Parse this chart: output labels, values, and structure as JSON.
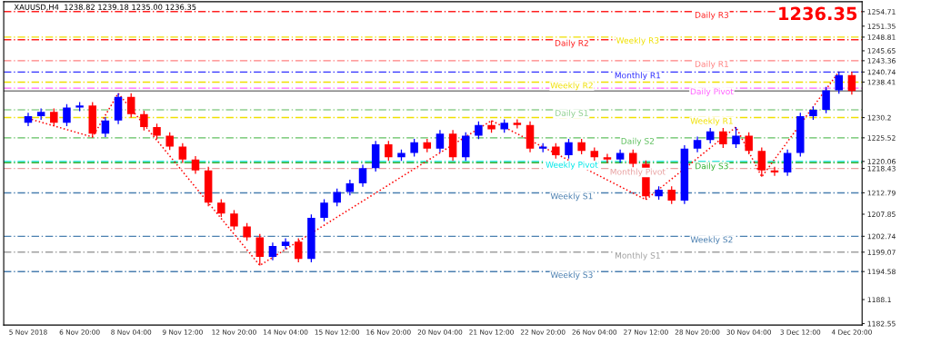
{
  "chart_data": {
    "type": "candlestick",
    "title": "XAUUSD,H4  1238.82 1239.18 1235.00 1236.35",
    "categories": [
      "5 Nov 2018",
      null,
      null,
      null,
      "6 Nov 20:00",
      null,
      null,
      null,
      "8 Nov 04:00",
      null,
      null,
      null,
      "9 Nov 12:00",
      null,
      null,
      null,
      "12 Nov 20:00",
      null,
      null,
      null,
      "14 Nov 04:00",
      null,
      null,
      null,
      "15 Nov 12:00",
      null,
      null,
      null,
      "16 Nov 20:00",
      null,
      null,
      null,
      "20 Nov 04:00",
      null,
      null,
      null,
      "21 Nov 12:00",
      null,
      null,
      null,
      "22 Nov 20:00",
      null,
      null,
      null,
      "26 Nov 04:00",
      null,
      null,
      null,
      "27 Nov 12:00",
      null,
      null,
      null,
      "28 Nov 20:00",
      null,
      null,
      null,
      "30 Nov 04:00",
      null,
      null,
      null,
      "3 Dec 12:00",
      null,
      null,
      null,
      "4 Dec 20:00"
    ],
    "ohlc": [
      [
        1229.0,
        1231.3,
        1228.2,
        1230.5
      ],
      [
        1230.5,
        1232.3,
        1229.7,
        1231.5
      ],
      [
        1231.5,
        1232.3,
        1228.2,
        1229.0
      ],
      [
        1229.0,
        1233.3,
        1228.2,
        1232.5
      ],
      [
        1232.5,
        1233.8,
        1231.7,
        1233.0
      ],
      [
        1233.0,
        1233.8,
        1225.7,
        1226.5
      ],
      [
        1226.5,
        1230.3,
        1225.7,
        1229.5
      ],
      [
        1229.5,
        1235.8,
        1228.7,
        1235.0
      ],
      [
        1235.0,
        1235.8,
        1230.2,
        1231.0
      ],
      [
        1231.0,
        1231.8,
        1227.2,
        1228.0
      ],
      [
        1228.0,
        1228.8,
        1225.2,
        1226.0
      ],
      [
        1226.0,
        1226.8,
        1222.7,
        1223.5
      ],
      [
        1223.5,
        1224.3,
        1219.7,
        1220.5
      ],
      [
        1220.5,
        1221.3,
        1217.2,
        1218.0
      ],
      [
        1218.0,
        1218.8,
        1209.7,
        1210.5
      ],
      [
        1210.5,
        1211.3,
        1207.2,
        1208.0
      ],
      [
        1208.0,
        1208.8,
        1204.2,
        1205.0
      ],
      [
        1205.0,
        1205.8,
        1201.7,
        1202.5
      ],
      [
        1202.5,
        1203.3,
        1196.0,
        1198.0
      ],
      [
        1198.0,
        1201.3,
        1197.2,
        1200.5
      ],
      [
        1200.5,
        1202.3,
        1199.7,
        1201.5
      ],
      [
        1201.5,
        1202.3,
        1196.7,
        1197.5
      ],
      [
        1197.5,
        1207.8,
        1196.7,
        1207.0
      ],
      [
        1207.0,
        1211.3,
        1206.2,
        1210.5
      ],
      [
        1210.5,
        1213.8,
        1209.7,
        1213.0
      ],
      [
        1213.0,
        1215.8,
        1212.2,
        1215.0
      ],
      [
        1215.0,
        1219.3,
        1214.2,
        1218.5
      ],
      [
        1218.5,
        1224.8,
        1217.7,
        1224.0
      ],
      [
        1224.0,
        1224.8,
        1220.2,
        1221.0
      ],
      [
        1221.0,
        1222.8,
        1220.2,
        1222.0
      ],
      [
        1222.0,
        1225.3,
        1221.2,
        1224.5
      ],
      [
        1224.5,
        1225.3,
        1222.2,
        1223.0
      ],
      [
        1223.0,
        1227.3,
        1222.2,
        1226.5
      ],
      [
        1226.5,
        1227.3,
        1220.2,
        1221.0
      ],
      [
        1221.0,
        1226.8,
        1220.2,
        1226.0
      ],
      [
        1226.0,
        1229.3,
        1225.2,
        1228.5
      ],
      [
        1228.5,
        1229.5,
        1226.7,
        1227.5
      ],
      [
        1227.5,
        1229.8,
        1226.7,
        1229.0
      ],
      [
        1229.0,
        1229.8,
        1227.7,
        1228.5
      ],
      [
        1228.5,
        1229.3,
        1222.2,
        1223.0
      ],
      [
        1223.0,
        1224.3,
        1222.2,
        1223.5
      ],
      [
        1223.5,
        1224.3,
        1220.7,
        1221.5
      ],
      [
        1221.5,
        1225.3,
        1220.7,
        1224.5
      ],
      [
        1224.5,
        1225.3,
        1221.7,
        1222.5
      ],
      [
        1222.5,
        1223.3,
        1220.2,
        1221.0
      ],
      [
        1221.0,
        1221.8,
        1219.7,
        1220.5
      ],
      [
        1220.5,
        1222.8,
        1219.7,
        1222.0
      ],
      [
        1222.0,
        1222.8,
        1218.7,
        1219.5
      ],
      [
        1219.5,
        1220.3,
        1211.2,
        1212.0
      ],
      [
        1212.0,
        1214.3,
        1211.2,
        1213.5
      ],
      [
        1213.5,
        1214.3,
        1210.2,
        1211.0
      ],
      [
        1211.0,
        1223.8,
        1210.2,
        1223.0
      ],
      [
        1223.0,
        1225.8,
        1222.2,
        1225.0
      ],
      [
        1225.0,
        1227.8,
        1224.2,
        1227.0
      ],
      [
        1227.0,
        1227.8,
        1223.2,
        1224.0
      ],
      [
        1224.0,
        1228.0,
        1223.2,
        1226.0
      ],
      [
        1226.0,
        1226.8,
        1221.7,
        1222.5
      ],
      [
        1222.5,
        1223.3,
        1216.5,
        1218.0
      ],
      [
        1218.0,
        1218.8,
        1216.7,
        1217.5
      ],
      [
        1217.5,
        1222.8,
        1216.7,
        1222.0
      ],
      [
        1222.0,
        1231.3,
        1221.2,
        1230.5
      ],
      [
        1230.5,
        1232.8,
        1229.7,
        1232.0
      ],
      [
        1232.0,
        1237.3,
        1231.2,
        1236.5
      ],
      [
        1236.5,
        1240.8,
        1235.7,
        1240.0
      ],
      [
        1240.0,
        1240.8,
        1235.5,
        1236.35
      ]
    ],
    "colors": [
      "#0000ff",
      "#0000ff",
      "#ff0000",
      "#0000ff",
      "#0000ff",
      "#ff0000",
      "#0000ff",
      "#0000ff",
      "#ff0000",
      "#ff0000",
      "#ff0000",
      "#ff0000",
      "#ff0000",
      "#ff0000",
      "#ff0000",
      "#ff0000",
      "#ff0000",
      "#ff0000",
      "#ff0000",
      "#0000ff",
      "#0000ff",
      "#ff0000",
      "#0000ff",
      "#0000ff",
      "#0000ff",
      "#0000ff",
      "#0000ff",
      "#0000ff",
      "#ff0000",
      "#0000ff",
      "#0000ff",
      "#ff0000",
      "#0000ff",
      "#ff0000",
      "#0000ff",
      "#0000ff",
      "#ff0000",
      "#0000ff",
      "#ff0000",
      "#ff0000",
      "#0000ff",
      "#ff0000",
      "#0000ff",
      "#ff0000",
      "#ff0000",
      "#ff0000",
      "#0000ff",
      "#ff0000",
      "#ff0000",
      "#0000ff",
      "#ff0000",
      "#0000ff",
      "#0000ff",
      "#0000ff",
      "#ff0000",
      "#0000ff",
      "#ff0000",
      "#ff0000",
      "#ff0000",
      "#0000ff",
      "#0000ff",
      "#0000ff",
      "#0000ff",
      "#0000ff",
      "#ff0000"
    ],
    "series": [
      {
        "type": "line",
        "color": "#ff0000",
        "line_style": "dotted",
        "values": [
          1230.0,
          null,
          null,
          null,
          null,
          1225.7,
          null,
          1235.8,
          null,
          null,
          null,
          null,
          null,
          null,
          null,
          null,
          null,
          null,
          1196.0,
          null,
          null,
          null,
          null,
          null,
          null,
          null,
          null,
          null,
          null,
          null,
          null,
          null,
          null,
          null,
          null,
          null,
          1229.5,
          null,
          null,
          null,
          null,
          null,
          null,
          null,
          null,
          null,
          null,
          null,
          1211.2,
          null,
          null,
          null,
          null,
          null,
          null,
          1228.0,
          null,
          1216.5,
          null,
          null,
          null,
          null,
          null,
          1240.8,
          null
        ]
      }
    ],
    "ylim": [
      1182.2,
      1257.0
    ],
    "yticks": [
      1182.55,
      1188.1,
      1194.58,
      1199.07,
      1202.74,
      1207.85,
      1212.79,
      1218.43,
      1220.06,
      1225.52,
      1230.2,
      1238.41,
      1240.74,
      1243.36,
      1245.65,
      1248.81,
      1251.35,
      1254.71
    ],
    "ref_lines": [
      {
        "axis": "y",
        "value": 1254.71,
        "label": "Daily R3",
        "color": "#ff2020",
        "line_style": "dashed"
      },
      {
        "axis": "y",
        "value": 1248.81,
        "label": "Weekly R3",
        "color": "#f0e000",
        "line_style": "dashed"
      },
      {
        "axis": "y",
        "value": 1248.2,
        "label": "Daily R2",
        "color": "#ff2020",
        "line_style": "dashed"
      },
      {
        "axis": "y",
        "value": 1243.36,
        "label": "Daily R1",
        "color": "#ff8080",
        "line_style": "dashed"
      },
      {
        "axis": "y",
        "value": 1240.74,
        "label": "Monthly R1",
        "color": "#3030ff",
        "line_style": "dashed"
      },
      {
        "axis": "y",
        "value": 1238.41,
        "label": "Weekly R2",
        "color": "#f0e000",
        "line_style": "dashed"
      },
      {
        "axis": "y",
        "value": 1237.0,
        "label": "Daily Pivot",
        "color": "#ff60ff",
        "line_style": "dashed"
      },
      {
        "axis": "y",
        "value": 1236.35,
        "label": null,
        "color": "#808080",
        "line_style": "solid"
      },
      {
        "axis": "y",
        "value": 1232.0,
        "label": "Daily S1",
        "color": "#90d090",
        "line_style": "dashed"
      },
      {
        "axis": "y",
        "value": 1230.2,
        "label": "Weekly R1",
        "color": "#f0e000",
        "line_style": "dashed"
      },
      {
        "axis": "y",
        "value": 1225.52,
        "label": "Daily S2",
        "color": "#60c060",
        "line_style": "dashed"
      },
      {
        "axis": "y",
        "value": 1220.06,
        "label": "Weekly Pivot",
        "color": "#00e8e8",
        "line_style": "dashed"
      },
      {
        "axis": "y",
        "value": 1219.75,
        "label": "Daily S3",
        "color": "#30b030",
        "line_style": "dashed"
      },
      {
        "axis": "y",
        "value": 1218.43,
        "label": "Monthly Pivot",
        "color": "#e8a0a0",
        "line_style": "dashed"
      },
      {
        "axis": "y",
        "value": 1212.79,
        "label": "Weekly S1",
        "color": "#4a7fb0",
        "line_style": "dashed"
      },
      {
        "axis": "y",
        "value": 1202.74,
        "label": "Weekly S2",
        "color": "#4a7fb0",
        "line_style": "dashed"
      },
      {
        "axis": "y",
        "value": 1199.07,
        "label": "Monthly S1",
        "color": "#a0a0a0",
        "line_style": "dashed"
      },
      {
        "axis": "y",
        "value": 1194.58,
        "label": "Weekly S3",
        "color": "#4a7fb0",
        "line_style": "dashed"
      }
    ],
    "annotations": [
      "1236.35"
    ],
    "grid": false
  }
}
